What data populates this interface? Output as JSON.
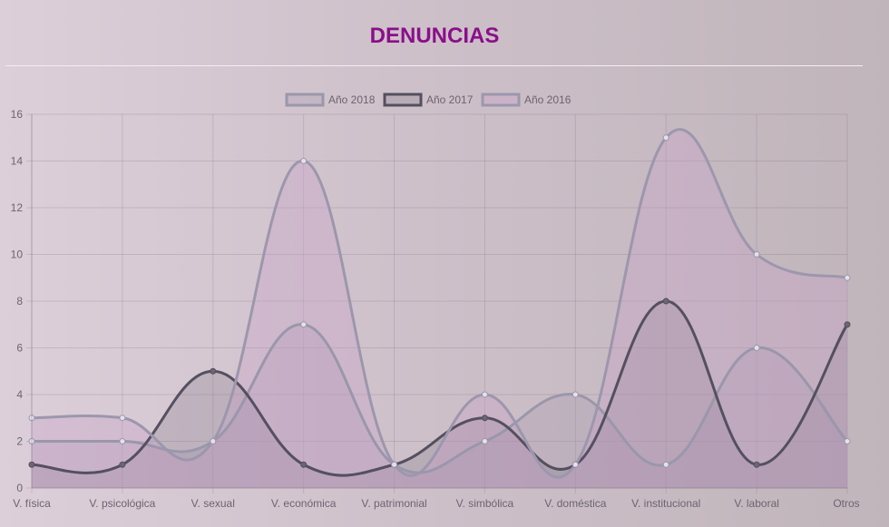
{
  "chart_data": {
    "type": "line",
    "title": "DENUNCIAS",
    "categories": [
      "V. física",
      "V. psicológica",
      "V. sexual",
      "V. económica",
      "V. patrimonial",
      "V. simbólica",
      "V. doméstica",
      "V. institucional",
      "V. laboral",
      "Otros"
    ],
    "series": [
      {
        "name": "Año 2018",
        "values": [
          2,
          2,
          2,
          7,
          1,
          2,
          4,
          1,
          6,
          2
        ],
        "color": "#9a97ab",
        "fill": "rgba(160,145,170,0.25)",
        "point_fill": "#e4e0ec"
      },
      {
        "name": "Año 2017",
        "values": [
          1,
          1,
          5,
          1,
          1,
          3,
          1,
          8,
          1,
          7
        ],
        "color": "#54505f",
        "fill": "rgba(110,100,120,0.22)",
        "point_fill": "#6b6672"
      },
      {
        "name": "Año 2016",
        "values": [
          3,
          3,
          2,
          14,
          1,
          4,
          1,
          15,
          10,
          9
        ],
        "color": "#9c97ad",
        "fill": "rgba(200,160,200,0.35)",
        "point_fill": "#e4e0ec"
      }
    ],
    "ylim": [
      0,
      16
    ],
    "y_ticks": [
      "0",
      "2",
      "4",
      "6",
      "8",
      "10",
      "12",
      "14",
      "16"
    ],
    "grid": true,
    "legend_position": "top",
    "curve": "smooth"
  }
}
